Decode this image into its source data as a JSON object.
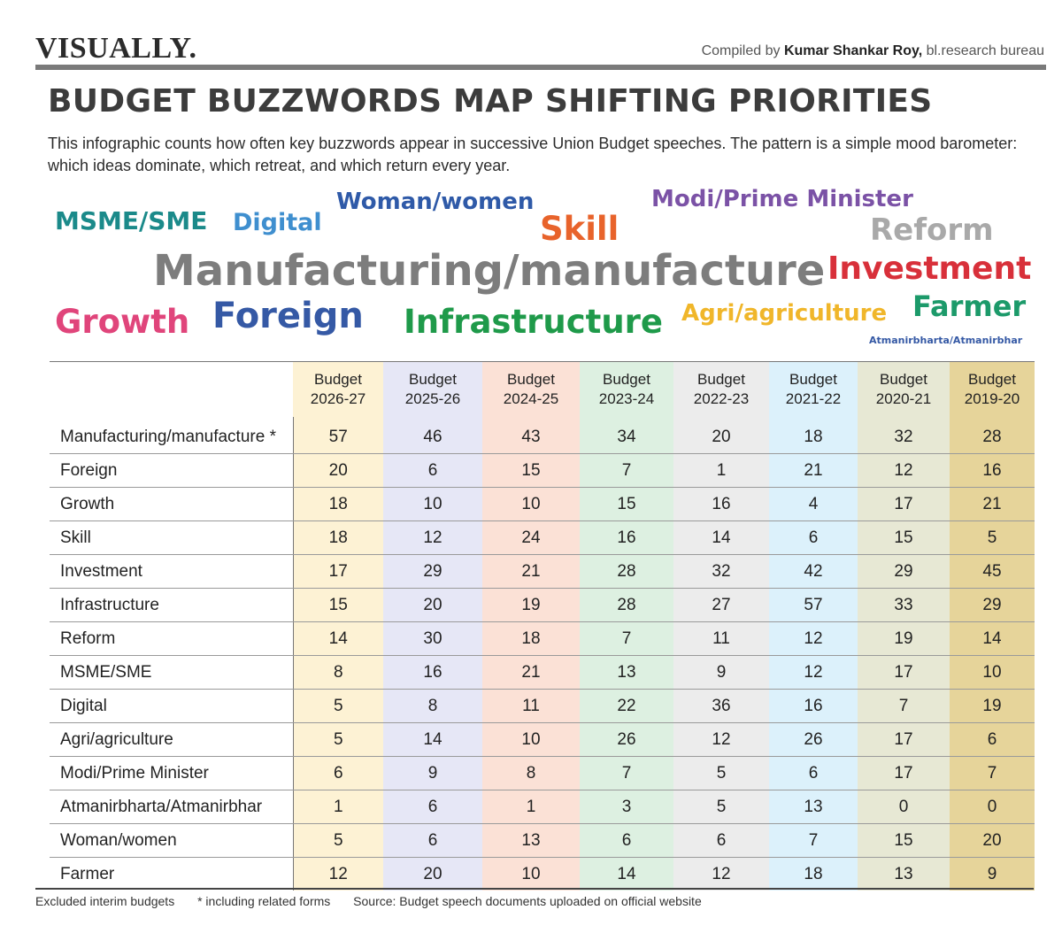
{
  "header": {
    "brand": "VISUALLY.",
    "credit_prefix": "Compiled by ",
    "credit_name": "Kumar Shankar Roy,",
    "credit_suffix": " bl.research bureau"
  },
  "title": "BUDGET BUZZWORDS MAP SHIFTING PRIORITIES",
  "subtitle": "This infographic counts how often key buzzwords appear in successive Union Budget speeches. The pattern is a simple mood barometer: which ideas dominate, which retreat, and which return every year.",
  "word_cloud": [
    {
      "text": "MSME/SME",
      "color": "#1b8a8a"
    },
    {
      "text": "Digital",
      "color": "#3f8fcf"
    },
    {
      "text": "Woman/women",
      "color": "#2f5aa8"
    },
    {
      "text": "Skill",
      "color": "#e8632b"
    },
    {
      "text": "Modi/Prime Minister",
      "color": "#7b52a6"
    },
    {
      "text": "Reform",
      "color": "#a9a9a9"
    },
    {
      "text": "Manufacturing/manufacture",
      "color": "#7d7d7d"
    },
    {
      "text": "Investment",
      "color": "#d8303a"
    },
    {
      "text": "Growth",
      "color": "#e0457b"
    },
    {
      "text": "Foreign",
      "color": "#3559a5"
    },
    {
      "text": "Infrastructure",
      "color": "#1f9a4a"
    },
    {
      "text": "Agri/agriculture",
      "color": "#f0b62a"
    },
    {
      "text": "Farmer",
      "color": "#1c9a6a"
    },
    {
      "text": "Atmanirbharta/Atmanirbhar",
      "color": "#3559a5"
    }
  ],
  "chart_data": {
    "type": "table",
    "columns": [
      {
        "line1": "Budget",
        "line2": "2026-27",
        "bg": "#fdf2d4"
      },
      {
        "line1": "Budget",
        "line2": "2025-26",
        "bg": "#e6e7f6"
      },
      {
        "line1": "Budget",
        "line2": "2024-25",
        "bg": "#fbe1d6"
      },
      {
        "line1": "Budget",
        "line2": "2023-24",
        "bg": "#ddf0e1"
      },
      {
        "line1": "Budget",
        "line2": "2022-23",
        "bg": "#ececec"
      },
      {
        "line1": "Budget",
        "line2": "2021-22",
        "bg": "#dcf1fb"
      },
      {
        "line1": "Budget",
        "line2": "2020-21",
        "bg": "#e7e8d4"
      },
      {
        "line1": "Budget",
        "line2": "2019-20",
        "bg": "#e6d49a"
      }
    ],
    "rows": [
      {
        "label": "Manufacturing/manufacture *",
        "values": [
          57,
          46,
          43,
          34,
          20,
          18,
          32,
          28
        ]
      },
      {
        "label": "Foreign",
        "values": [
          20,
          6,
          15,
          7,
          1,
          21,
          12,
          16
        ]
      },
      {
        "label": "Growth",
        "values": [
          18,
          10,
          10,
          15,
          16,
          4,
          17,
          21
        ]
      },
      {
        "label": "Skill",
        "values": [
          18,
          12,
          24,
          16,
          14,
          6,
          15,
          5
        ]
      },
      {
        "label": "Investment",
        "values": [
          17,
          29,
          21,
          28,
          32,
          42,
          29,
          45
        ]
      },
      {
        "label": "Infrastructure",
        "values": [
          15,
          20,
          19,
          28,
          27,
          57,
          33,
          29
        ]
      },
      {
        "label": "Reform",
        "values": [
          14,
          30,
          18,
          7,
          11,
          12,
          19,
          14
        ]
      },
      {
        "label": "MSME/SME",
        "values": [
          8,
          16,
          21,
          13,
          9,
          12,
          17,
          10
        ]
      },
      {
        "label": "Digital",
        "values": [
          5,
          8,
          11,
          22,
          36,
          16,
          7,
          19
        ]
      },
      {
        "label": "Agri/agriculture",
        "values": [
          5,
          14,
          10,
          26,
          12,
          26,
          17,
          6
        ]
      },
      {
        "label": "Modi/Prime Minister",
        "values": [
          6,
          9,
          8,
          7,
          5,
          6,
          17,
          7
        ]
      },
      {
        "label": "Atmanirbharta/Atmanirbhar",
        "values": [
          1,
          6,
          1,
          3,
          5,
          13,
          0,
          0
        ]
      },
      {
        "label": "Woman/women",
        "values": [
          5,
          6,
          13,
          6,
          6,
          7,
          15,
          20
        ]
      },
      {
        "label": "Farmer",
        "values": [
          12,
          20,
          10,
          14,
          12,
          18,
          13,
          9
        ]
      }
    ]
  },
  "footnotes": [
    "Excluded interim budgets",
    "* including related forms",
    "Source: Budget speech documents uploaded on official website"
  ]
}
